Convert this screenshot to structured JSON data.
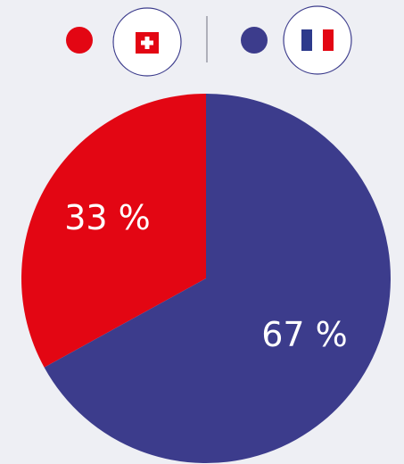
{
  "chart_data": {
    "type": "pie",
    "categories": [
      null,
      null
    ],
    "values": [
      33,
      67
    ],
    "value_labels": [
      "33 %",
      "67 %"
    ],
    "colors": [
      "#e30613",
      "#3c3c8c"
    ]
  }
}
